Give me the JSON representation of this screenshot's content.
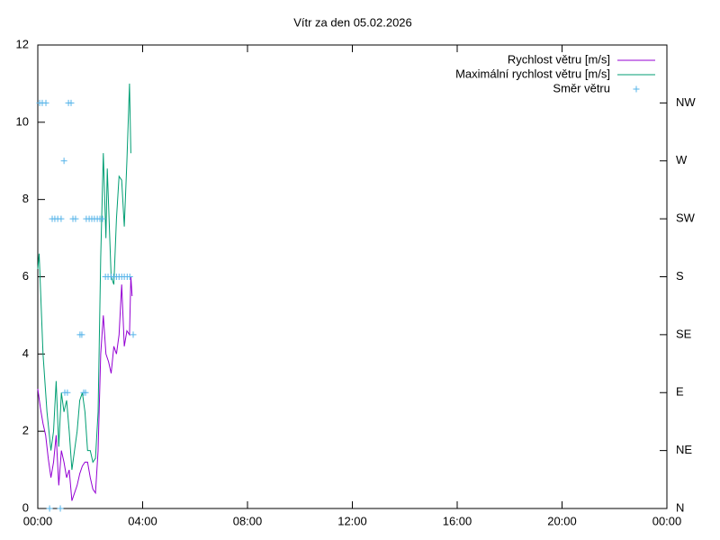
{
  "chart_data": {
    "type": "line",
    "title": "Vítr za den 05.02.2026",
    "xlim": [
      0,
      24
    ],
    "xticks": [
      {
        "value": 0,
        "label": "00:00"
      },
      {
        "value": 4,
        "label": "04:00"
      },
      {
        "value": 8,
        "label": "08:00"
      },
      {
        "value": 12,
        "label": "12:00"
      },
      {
        "value": 16,
        "label": "16:00"
      },
      {
        "value": 20,
        "label": "20:00"
      },
      {
        "value": 24,
        "label": "00:00"
      }
    ],
    "ylim": [
      0,
      12
    ],
    "yticks": [
      0,
      2,
      4,
      6,
      8,
      10,
      12
    ],
    "y2lim": [
      0,
      360
    ],
    "y2ticks": [
      {
        "value": 0,
        "label": "N"
      },
      {
        "value": 45,
        "label": "NE"
      },
      {
        "value": 90,
        "label": "E"
      },
      {
        "value": 135,
        "label": "SE"
      },
      {
        "value": 180,
        "label": "S"
      },
      {
        "value": 225,
        "label": "SW"
      },
      {
        "value": 270,
        "label": "W"
      },
      {
        "value": 315,
        "label": "NW"
      }
    ],
    "legend": "top-right",
    "series": [
      {
        "name": "Rychlost větru [m/s]",
        "color": "#9400d3",
        "style": "lines",
        "x": [
          0,
          0.1,
          0.2,
          0.3,
          0.4,
          0.5,
          0.6,
          0.7,
          0.8,
          0.9,
          1.0,
          1.1,
          1.2,
          1.3,
          1.4,
          1.5,
          1.6,
          1.7,
          1.8,
          1.9,
          2.0,
          2.1,
          2.2,
          2.3,
          2.4,
          2.5,
          2.6,
          2.7,
          2.8,
          2.9,
          3.0,
          3.1,
          3.2,
          3.3,
          3.4,
          3.5,
          3.55,
          3.6
        ],
        "values": [
          3.1,
          2.6,
          2.2,
          1.9,
          1.3,
          0.8,
          1.2,
          1.9,
          0.6,
          1.5,
          1.2,
          0.8,
          1.0,
          0.2,
          0.4,
          0.6,
          0.9,
          1.1,
          1.2,
          1.2,
          0.8,
          0.5,
          0.4,
          1.5,
          4.0,
          5.0,
          4.0,
          3.8,
          3.5,
          4.2,
          4.0,
          4.5,
          5.8,
          4.2,
          4.6,
          4.5,
          6.0,
          5.5
        ]
      },
      {
        "name": "Maximální rychlost větru [m/s]",
        "color": "#009e73",
        "style": "lines",
        "x": [
          0,
          0.05,
          0.2,
          0.35,
          0.5,
          0.6,
          0.7,
          0.8,
          0.9,
          1.0,
          1.1,
          1.2,
          1.3,
          1.4,
          1.5,
          1.6,
          1.7,
          1.8,
          1.9,
          2.0,
          2.1,
          2.2,
          2.3,
          2.4,
          2.5,
          2.6,
          2.65,
          2.8,
          2.9,
          3.0,
          3.1,
          3.2,
          3.3,
          3.4,
          3.5,
          3.55
        ],
        "values": [
          6.2,
          6.6,
          4.0,
          2.5,
          1.5,
          2.0,
          3.3,
          1.6,
          3.0,
          2.5,
          2.8,
          2.0,
          1.0,
          1.5,
          2.0,
          2.8,
          3.0,
          2.5,
          1.5,
          1.5,
          1.2,
          1.3,
          2.5,
          6.5,
          9.2,
          7.0,
          8.8,
          6.0,
          5.8,
          7.5,
          8.6,
          8.5,
          7.3,
          9.0,
          11.0,
          9.2
        ]
      },
      {
        "name": "Směr větru",
        "color": "#56b4e9",
        "style": "points",
        "axis": "y2",
        "x": [
          0.07,
          0.17,
          0.31,
          1.17,
          1.27,
          1.0,
          0.55,
          0.65,
          0.76,
          0.89,
          1.34,
          1.44,
          1.85,
          1.96,
          2.06,
          2.16,
          2.27,
          2.37,
          2.47,
          2.58,
          2.68,
          2.79,
          2.89,
          3.0,
          3.1,
          3.2,
          3.3,
          3.41,
          3.51,
          1.61,
          1.68,
          3.64,
          1.03,
          1.13,
          1.75,
          1.82,
          0.45,
          0.86
        ],
        "values": [
          315,
          315,
          315,
          315,
          315,
          270,
          225,
          225,
          225,
          225,
          225,
          225,
          225,
          225,
          225,
          225,
          225,
          225,
          225,
          180,
          180,
          180,
          180,
          180,
          180,
          180,
          180,
          180,
          180,
          135,
          135,
          135,
          90,
          90,
          90,
          90,
          0,
          0
        ]
      }
    ]
  }
}
